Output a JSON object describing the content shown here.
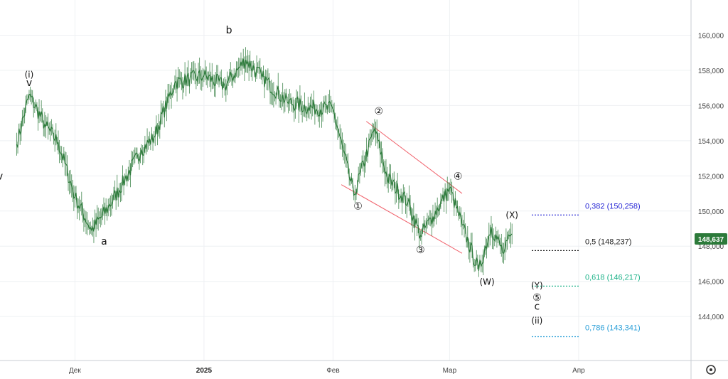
{
  "chart_data": {
    "type": "line",
    "series": [],
    "x": [
      "2024-11-17",
      "2024-11-20",
      "2024-11-24",
      "2024-11-27",
      "2024-12-01",
      "2024-12-05",
      "2024-12-09",
      "2024-12-13",
      "2024-12-17",
      "2024-12-20",
      "2024-12-25",
      "2025-01-01",
      "2025-01-06",
      "2025-01-11",
      "2025-01-15",
      "2025-01-21",
      "2025-01-26",
      "2025-02-01",
      "2025-02-06",
      "2025-02-11",
      "2025-02-14",
      "2025-02-19",
      "2025-02-22",
      "2025-02-25",
      "2025-03-01",
      "2025-03-04",
      "2025-03-08",
      "2025-03-11",
      "2025-03-14",
      "2025-03-16"
    ],
    "y": [
      153.8,
      156.6,
      154.8,
      153.9,
      150.8,
      148.9,
      150.2,
      151.8,
      153.5,
      154.2,
      157.3,
      157.7,
      157.1,
      158.6,
      157.6,
      156.2,
      155.9,
      155.8,
      150.9,
      154.7,
      151.9,
      150.5,
      148.6,
      149.7,
      151.3,
      149.2,
      146.6,
      149.1,
      147.6,
      148.7
    ],
    "yaxis": {
      "ticks": [
        "144,000",
        "146,000",
        "148,000",
        "150,000",
        "152,000",
        "154,000",
        "156,000",
        "158,000",
        "160,000"
      ],
      "range": [
        141.5,
        162.0
      ]
    },
    "xaxis": {
      "ticks": [
        "Дек",
        "2025",
        "Фев",
        "Мар",
        "Апр"
      ],
      "range": [
        "2024-11-13",
        "2025-04-28"
      ]
    },
    "last_price": "148,637",
    "wave_labels": [
      {
        "text": "(i)",
        "x": "2024-11-20",
        "y": 157.6
      },
      {
        "text": "v",
        "x": "2024-11-20",
        "y": 157.1
      },
      {
        "text": "v",
        "x": "2024-11-13",
        "y": 151.8
      },
      {
        "text": "a",
        "x": "2024-12-08",
        "y": 148.1
      },
      {
        "text": "b",
        "x": "2025-01-07",
        "y": 160.1
      },
      {
        "text": "①",
        "x": "2025-02-07",
        "y": 150.1
      },
      {
        "text": "②",
        "x": "2025-02-12",
        "y": 155.5
      },
      {
        "text": "③",
        "x": "2025-02-22",
        "y": 147.6
      },
      {
        "text": "④",
        "x": "2025-03-03",
        "y": 151.8
      },
      {
        "text": "(W)",
        "x": "2025-03-10",
        "y": 145.8
      },
      {
        "text": "(X)",
        "x": "2025-03-16",
        "y": 149.6
      },
      {
        "text": "(Y)",
        "x": "2025-03-22",
        "y": 145.6
      },
      {
        "text": "⑤",
        "x": "2025-03-22",
        "y": 144.9
      },
      {
        "text": "c",
        "x": "2025-03-22",
        "y": 144.4
      },
      {
        "text": "(ii)",
        "x": "2025-03-22",
        "y": 143.6
      }
    ],
    "channel_lines": [
      {
        "x1": "2025-02-09",
        "y1": 155.1,
        "x2": "2025-03-04",
        "y2": 151.0
      },
      {
        "x1": "2025-02-03",
        "y1": 151.5,
        "x2": "2025-03-04",
        "y2": 147.6
      }
    ],
    "fib_levels": [
      {
        "label": "0,382 (150,258)",
        "value": 150.258,
        "color": "#2b2bd6"
      },
      {
        "label": "0,5 (148,237)",
        "value": 148.237,
        "color": "#222222"
      },
      {
        "label": "0,618 (146,217)",
        "value": 146.217,
        "color": "#1fb38a"
      },
      {
        "label": "0,786 (143,341)",
        "value": 143.341,
        "color": "#2a9fd8"
      }
    ],
    "candle_color": "#2c7a3a",
    "channel_color": "#f0606a",
    "grid": true
  },
  "ui": {
    "settings_icon": "settings-gear-icon"
  }
}
